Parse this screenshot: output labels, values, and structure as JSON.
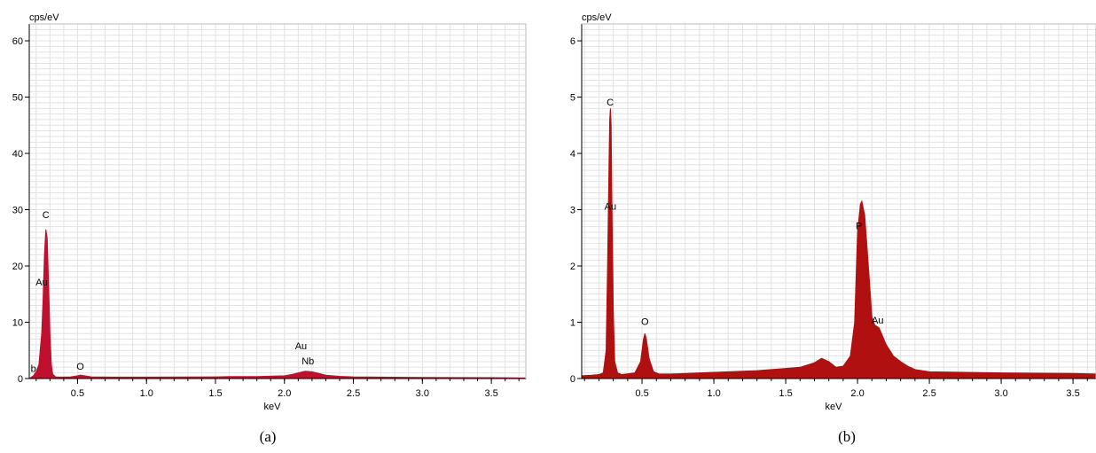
{
  "chart_data": [
    {
      "type": "area",
      "caption": "(a)",
      "ylabel": "cps/eV",
      "xlabel": "keV",
      "xlim": [
        0.15,
        3.75
      ],
      "ylim": [
        0,
        63
      ],
      "xticks": [
        0.5,
        1.0,
        1.5,
        2.0,
        2.5,
        3.0,
        3.5
      ],
      "xtick_labels": [
        "0.5",
        "1.0",
        "1.5",
        "2.0",
        "2.5",
        "3.0",
        "3.5"
      ],
      "yticks": [
        0,
        10,
        20,
        30,
        40,
        50,
        60
      ],
      "ytick_labels": [
        "0",
        "10",
        "20",
        "30",
        "40",
        "50",
        "60"
      ],
      "grid": true,
      "fill_color": "#c01030",
      "spectrum": {
        "x": [
          0.15,
          0.18,
          0.2,
          0.22,
          0.24,
          0.25,
          0.26,
          0.27,
          0.28,
          0.29,
          0.3,
          0.31,
          0.32,
          0.34,
          0.37,
          0.45,
          0.5,
          0.52,
          0.55,
          0.6,
          0.8,
          1.0,
          1.5,
          1.6,
          1.8,
          2.0,
          2.05,
          2.1,
          2.15,
          2.2,
          2.25,
          2.3,
          2.35,
          2.4,
          2.5,
          3.0,
          3.5,
          3.75
        ],
        "y": [
          0,
          0.5,
          1.2,
          2.5,
          8,
          14,
          22,
          26.5,
          25,
          17,
          8,
          2.5,
          0.8,
          0.3,
          0.25,
          0.3,
          0.5,
          0.6,
          0.5,
          0.3,
          0.25,
          0.25,
          0.3,
          0.35,
          0.35,
          0.5,
          0.7,
          1.0,
          1.3,
          1.2,
          0.9,
          0.6,
          0.5,
          0.4,
          0.3,
          0.2,
          0.15,
          0.1
        ]
      },
      "peak_labels": [
        {
          "text": "C",
          "x": 0.27,
          "y": 28.5
        },
        {
          "text": "Au",
          "x": 0.24,
          "y": 16.5
        },
        {
          "text": "b",
          "x": 0.18,
          "y": 1.2
        },
        {
          "text": "O",
          "x": 0.52,
          "y": 1.6
        },
        {
          "text": "Au",
          "x": 2.12,
          "y": 5.2
        },
        {
          "text": "Nb",
          "x": 2.17,
          "y": 2.5
        }
      ]
    },
    {
      "type": "area",
      "caption": "(b)",
      "ylabel": "cps/eV",
      "xlabel": "keV",
      "xlim": [
        0.08,
        3.66
      ],
      "ylim": [
        0,
        6.3
      ],
      "xticks": [
        0.5,
        1.0,
        1.5,
        2.0,
        2.5,
        3.0,
        3.5
      ],
      "xtick_labels": [
        "0.5",
        "1.0",
        "1.5",
        "2.0",
        "2.5",
        "3.0",
        "3.5"
      ],
      "yticks": [
        0,
        1,
        2,
        3,
        4,
        5,
        6
      ],
      "ytick_labels": [
        "0",
        "1",
        "2",
        "3",
        "4",
        "5",
        "6"
      ],
      "grid": true,
      "fill_color": "#b01010",
      "spectrum": {
        "x": [
          0.08,
          0.15,
          0.2,
          0.23,
          0.25,
          0.26,
          0.27,
          0.275,
          0.28,
          0.285,
          0.29,
          0.3,
          0.31,
          0.33,
          0.36,
          0.45,
          0.49,
          0.51,
          0.52,
          0.53,
          0.55,
          0.58,
          0.62,
          0.7,
          0.9,
          1.1,
          1.3,
          1.5,
          1.6,
          1.7,
          1.75,
          1.8,
          1.85,
          1.9,
          1.95,
          1.98,
          2.0,
          2.02,
          2.03,
          2.05,
          2.07,
          2.1,
          2.12,
          2.15,
          2.2,
          2.25,
          2.3,
          2.35,
          2.4,
          2.5,
          3.0,
          3.5,
          3.66
        ],
        "y": [
          0.05,
          0.06,
          0.07,
          0.1,
          0.5,
          2.0,
          3.8,
          4.6,
          4.8,
          4.5,
          3.2,
          1.2,
          0.3,
          0.1,
          0.07,
          0.1,
          0.3,
          0.7,
          0.8,
          0.7,
          0.35,
          0.12,
          0.08,
          0.08,
          0.1,
          0.12,
          0.14,
          0.18,
          0.2,
          0.28,
          0.36,
          0.3,
          0.2,
          0.22,
          0.4,
          1.0,
          2.6,
          3.1,
          3.15,
          2.9,
          2.2,
          1.1,
          0.95,
          0.9,
          0.6,
          0.4,
          0.3,
          0.22,
          0.16,
          0.12,
          0.1,
          0.09,
          0.08
        ]
      },
      "peak_labels": [
        {
          "text": "C",
          "x": 0.278,
          "y": 4.85
        },
        {
          "text": "Au",
          "x": 0.28,
          "y": 3.0
        },
        {
          "text": "O",
          "x": 0.52,
          "y": 0.95
        },
        {
          "text": "P",
          "x": 2.01,
          "y": 2.65
        },
        {
          "text": "Au",
          "x": 2.14,
          "y": 0.98
        }
      ]
    }
  ]
}
